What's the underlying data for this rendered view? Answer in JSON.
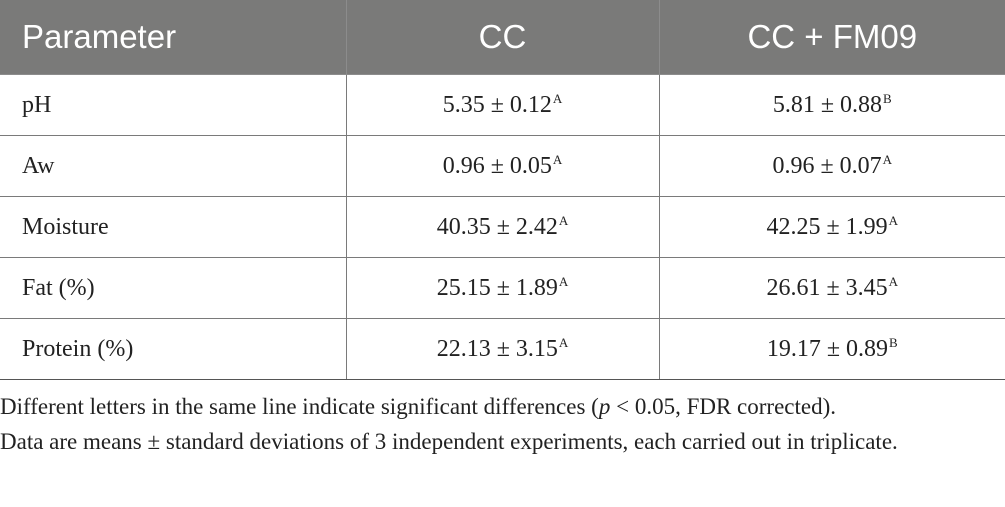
{
  "table": {
    "headers": [
      "Parameter",
      "CC",
      "CC + FM09"
    ],
    "rows": [
      {
        "param": "pH",
        "cc": "5.35 ± 0.12",
        "cc_sup": "A",
        "ccfm": "5.81 ± 0.88",
        "ccfm_sup": "B"
      },
      {
        "param": "Aw",
        "cc": "0.96 ± 0.05",
        "cc_sup": "A",
        "ccfm": "0.96 ± 0.07",
        "ccfm_sup": "A"
      },
      {
        "param": "Moisture",
        "cc": "40.35 ± 2.42",
        "cc_sup": "A",
        "ccfm": "42.25 ± 1.99",
        "ccfm_sup": "A"
      },
      {
        "param": "Fat (%)",
        "cc": "25.15 ± 1.89",
        "cc_sup": "A",
        "ccfm": "26.61 ± 3.45",
        "ccfm_sup": "A"
      },
      {
        "param": "Protein (%)",
        "cc": "22.13 ± 3.15",
        "cc_sup": "A",
        "ccfm": "19.17 ± 0.89",
        "ccfm_sup": "B"
      }
    ]
  },
  "footnote": {
    "line1_pre": "Different letters in the same line indicate significant differences (",
    "line1_p": "p",
    "line1_post": " < 0.05, FDR corrected).",
    "line2": "Data are means ± standard deviations of 3 independent experiments, each carried out in triplicate."
  }
}
